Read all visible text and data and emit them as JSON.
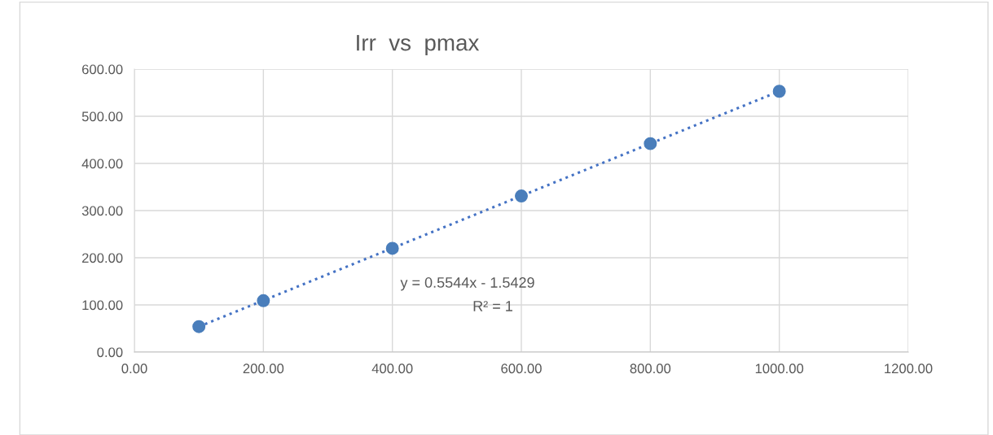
{
  "chart_data": {
    "type": "scatter",
    "title": "Irr  vs  pmax",
    "series": [
      {
        "color": "#4a7ebb",
        "marker": "circle",
        "x": [
          100,
          200,
          400,
          600,
          800,
          1000
        ],
        "values": [
          54,
          109,
          220,
          331,
          442,
          553
        ]
      },
      {
        "type": "line",
        "color": "#4472c4",
        "line_style": "dotted",
        "marker": "none",
        "x": [
          100,
          1000
        ],
        "values": [
          54,
          553
        ]
      }
    ],
    "xlim": [
      0,
      1200
    ],
    "xticks": [
      {
        "value": 0,
        "label": "0.00"
      },
      {
        "value": 200,
        "label": "200.00"
      },
      {
        "value": 400,
        "label": "400.00"
      },
      {
        "value": 600,
        "label": "600.00"
      },
      {
        "value": 800,
        "label": "800.00"
      },
      {
        "value": 1000,
        "label": "1000.00"
      },
      {
        "value": 1200,
        "label": "1200.00"
      }
    ],
    "ylim": [
      0,
      600
    ],
    "yticks": [
      {
        "value": 0,
        "label": "0.00"
      },
      {
        "value": 100,
        "label": "100.00"
      },
      {
        "value": 200,
        "label": "200.00"
      },
      {
        "value": 300,
        "label": "300.00"
      },
      {
        "value": 400,
        "label": "400.00"
      },
      {
        "value": 500,
        "label": "500.00"
      },
      {
        "value": 600,
        "label": "600.00"
      }
    ],
    "grid": true,
    "annotations": [
      "y = 0.5544x - 1.5429",
      "R² = 1"
    ]
  }
}
